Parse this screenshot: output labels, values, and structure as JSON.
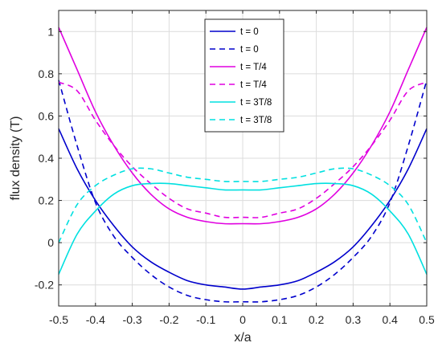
{
  "chart_data": {
    "type": "line",
    "xlabel": "x/a",
    "ylabel": "flux density (T)",
    "xlim": [
      -0.5,
      0.5
    ],
    "ylim": [
      -0.3,
      1.1
    ],
    "xticks": [
      -0.5,
      -0.4,
      -0.3,
      -0.2,
      -0.1,
      0,
      0.1,
      0.2,
      0.3,
      0.4,
      0.5
    ],
    "xtick_labels": [
      "-0.5",
      "-0.4",
      "-0.3",
      "-0.2",
      "-0.1",
      "0",
      "0.1",
      "0.2",
      "0.3",
      "0.4",
      "0.5"
    ],
    "yticks": [
      -0.2,
      0,
      0.2,
      0.4,
      0.6,
      0.8,
      1
    ],
    "ytick_labels": [
      "-0.2",
      "0",
      "0.2",
      "0.4",
      "0.6",
      "0.8",
      "1"
    ],
    "grid": true,
    "legend_position": "top-center",
    "x": [
      -0.5,
      -0.45,
      -0.4,
      -0.35,
      -0.3,
      -0.25,
      -0.2,
      -0.15,
      -0.1,
      -0.05,
      0,
      0.05,
      0.1,
      0.15,
      0.2,
      0.25,
      0.3,
      0.35,
      0.4,
      0.45,
      0.5
    ],
    "series": [
      {
        "name": "t = 0",
        "color": "#0000cc",
        "dash": false,
        "values": [
          0.54,
          0.35,
          0.2,
          0.08,
          -0.02,
          -0.09,
          -0.14,
          -0.18,
          -0.2,
          -0.21,
          -0.22,
          -0.21,
          -0.2,
          -0.18,
          -0.14,
          -0.09,
          -0.02,
          0.08,
          0.2,
          0.35,
          0.54
        ]
      },
      {
        "name": "t = 0",
        "color": "#0000cc",
        "dash": true,
        "values": [
          0.77,
          0.46,
          0.19,
          0.03,
          -0.07,
          -0.15,
          -0.21,
          -0.25,
          -0.27,
          -0.28,
          -0.28,
          -0.28,
          -0.27,
          -0.25,
          -0.21,
          -0.15,
          -0.07,
          0.03,
          0.19,
          0.46,
          0.77
        ]
      },
      {
        "name": "t = T/4",
        "color": "#e000e0",
        "dash": false,
        "values": [
          1.02,
          0.82,
          0.62,
          0.46,
          0.33,
          0.23,
          0.16,
          0.12,
          0.1,
          0.09,
          0.09,
          0.09,
          0.1,
          0.12,
          0.16,
          0.23,
          0.33,
          0.46,
          0.62,
          0.82,
          1.02
        ]
      },
      {
        "name": "t = T/4",
        "color": "#e000e0",
        "dash": true,
        "values": [
          0.76,
          0.72,
          0.58,
          0.46,
          0.36,
          0.28,
          0.21,
          0.16,
          0.14,
          0.12,
          0.12,
          0.12,
          0.14,
          0.16,
          0.21,
          0.28,
          0.36,
          0.46,
          0.58,
          0.72,
          0.76
        ]
      },
      {
        "name": "t = 3T/8",
        "color": "#00e0e0",
        "dash": false,
        "values": [
          -0.15,
          0.04,
          0.15,
          0.23,
          0.27,
          0.28,
          0.28,
          0.27,
          0.26,
          0.25,
          0.25,
          0.25,
          0.26,
          0.27,
          0.28,
          0.28,
          0.27,
          0.23,
          0.15,
          0.04,
          -0.15
        ]
      },
      {
        "name": "t = 3T/8",
        "color": "#00e0e0",
        "dash": true,
        "values": [
          0.0,
          0.18,
          0.27,
          0.32,
          0.35,
          0.35,
          0.33,
          0.31,
          0.3,
          0.29,
          0.29,
          0.29,
          0.3,
          0.31,
          0.33,
          0.35,
          0.35,
          0.32,
          0.27,
          0.18,
          0.0
        ]
      }
    ]
  }
}
